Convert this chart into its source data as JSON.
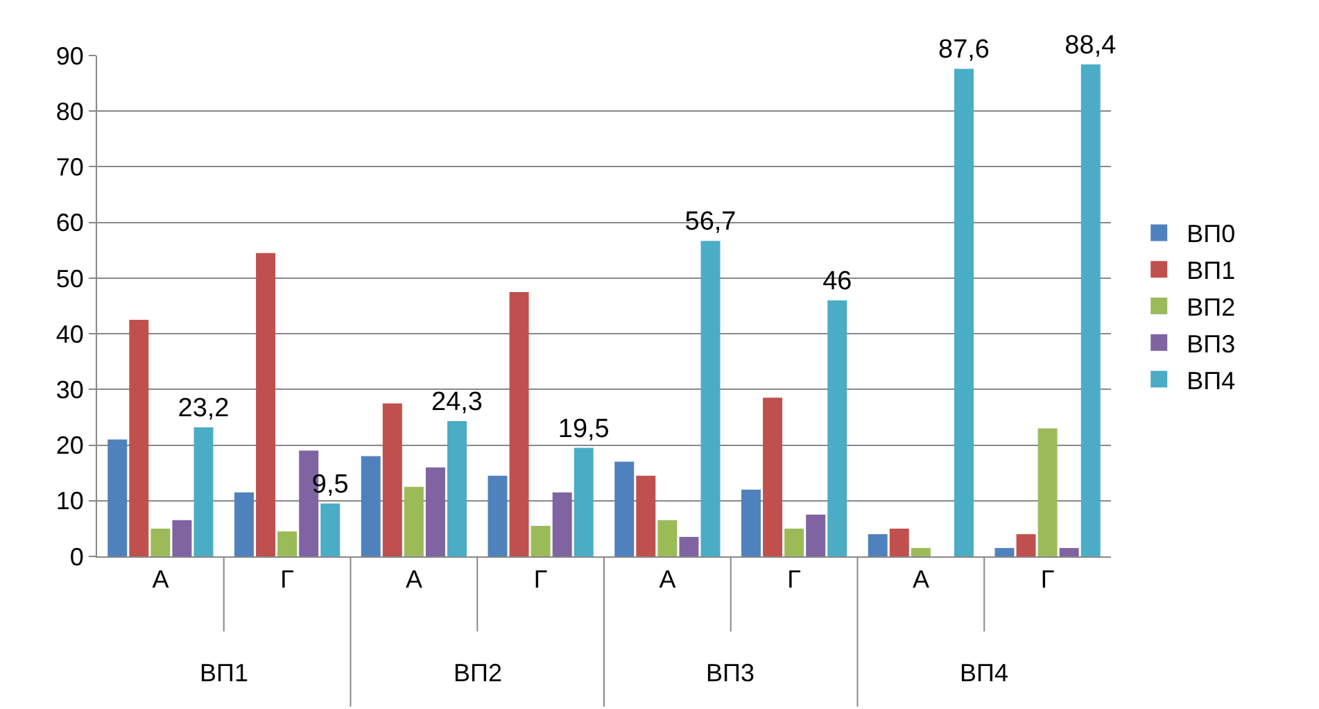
{
  "chart_data": {
    "type": "bar",
    "categories": [
      "А",
      "Г",
      "А",
      "Г",
      "А",
      "Г",
      "А",
      "Г"
    ],
    "annotations": [
      "ВП1",
      "ВП2",
      "ВП3",
      "ВП4"
    ],
    "series": [
      {
        "name": "ВП0",
        "color": "#4f81bd",
        "values": [
          21,
          11.5,
          18,
          14.5,
          17,
          12,
          4,
          1.5
        ]
      },
      {
        "name": "ВП1",
        "color": "#c0504d",
        "values": [
          42.5,
          54.5,
          27.5,
          47.5,
          14.5,
          28.5,
          5,
          4
        ]
      },
      {
        "name": "ВП2",
        "color": "#9bbb59",
        "values": [
          5,
          4.5,
          12.5,
          5.5,
          6.5,
          5,
          1.5,
          23
        ]
      },
      {
        "name": "ВП3",
        "color": "#8064a2",
        "values": [
          6.5,
          19,
          16,
          11.5,
          3.5,
          7.5,
          0,
          1.5
        ]
      },
      {
        "name": "ВП4",
        "color": "#4bacc6",
        "values": [
          23.2,
          9.5,
          24.3,
          19.5,
          56.7,
          46,
          87.6,
          88.4
        ],
        "value_labels": [
          "23,2",
          "9,5",
          "24,3",
          "19,5",
          "56,7",
          "46",
          "87,6",
          "88,4"
        ]
      }
    ],
    "ylim": [
      0,
      90
    ],
    "yticks": [
      0,
      10,
      20,
      30,
      40,
      50,
      60,
      70,
      80,
      90
    ],
    "grid": "y",
    "legend": "right"
  }
}
